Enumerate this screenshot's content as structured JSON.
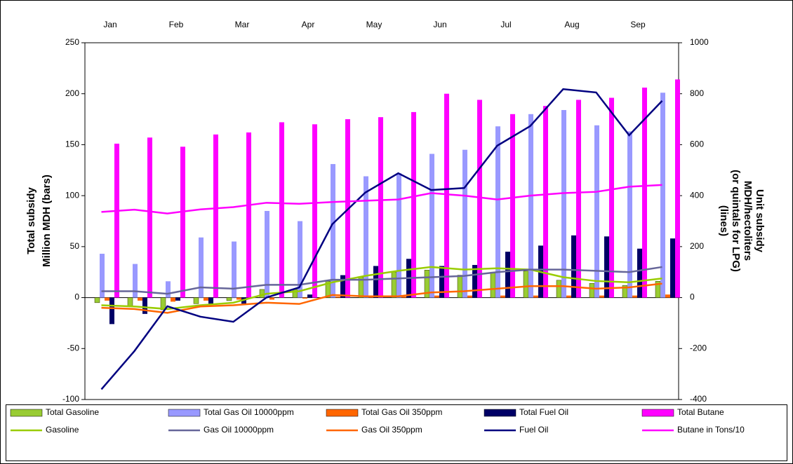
{
  "chart_data": {
    "type": "bar",
    "categories": [
      "Jan",
      null,
      "Feb",
      null,
      "Mar",
      null,
      "Apr",
      null,
      "May",
      null,
      "Jun",
      null,
      "Jul",
      null,
      "Aug",
      null,
      "Sep",
      null
    ],
    "y_label": [
      "Total subsidy",
      "Million MDH (bars)"
    ],
    "y2_label": [
      "Unit subsidy",
      "MDH/hectoliters",
      "(or quintals for LPG)",
      "(lines)"
    ],
    "ylim": [
      -100,
      250
    ],
    "yticks": [
      -100,
      -50,
      0,
      50,
      100,
      150,
      200,
      250
    ],
    "y2lim": [
      -400,
      1000
    ],
    "y2ticks": [
      -400,
      -200,
      0,
      200,
      400,
      600,
      800,
      1000
    ],
    "series": [
      {
        "name": "Total Gasoline",
        "type": "bar",
        "color": "#99cc33",
        "values": [
          -5,
          -8,
          -12,
          -6,
          -3,
          8,
          8,
          16,
          20,
          25,
          27,
          22,
          25,
          26,
          17,
          14,
          12,
          16
        ]
      },
      {
        "name": "Total Gas Oil 10000ppm",
        "type": "bar",
        "color": "#9999ff",
        "values": [
          43,
          33,
          16,
          59,
          55,
          85,
          75,
          131,
          119,
          122,
          141,
          145,
          168,
          180,
          184,
          169,
          163,
          201
        ]
      },
      {
        "name": "Total Gas Oil 350ppm",
        "type": "bar",
        "color": "#ff6600",
        "values": [
          -3,
          -3,
          -4,
          -3,
          -2,
          -2,
          -1,
          1,
          1,
          1,
          2,
          2,
          2,
          2,
          2,
          2,
          2,
          3
        ]
      },
      {
        "name": "Total Fuel Oil",
        "type": "bar",
        "color": "#000066",
        "values": [
          -26,
          -16,
          -3,
          -6,
          -6,
          0,
          3,
          22,
          31,
          38,
          31,
          32,
          45,
          51,
          61,
          60,
          48,
          58
        ]
      },
      {
        "name": "Total Butane",
        "type": "bar",
        "color": "#ff00ff",
        "values": [
          151,
          157,
          148,
          160,
          162,
          172,
          170,
          175,
          177,
          182,
          200,
          194,
          180,
          188,
          194,
          196,
          206,
          214
        ]
      },
      {
        "name": "Gasoline",
        "type": "line",
        "axis": "y2",
        "color": "#99cc00",
        "values": [
          -30,
          -35,
          -45,
          -30,
          -20,
          15,
          25,
          60,
          85,
          105,
          120,
          110,
          115,
          110,
          80,
          65,
          60,
          75
        ]
      },
      {
        "name": "Gas Oil 10000ppm",
        "type": "line",
        "axis": "y2",
        "color": "#666699",
        "values": [
          25,
          25,
          15,
          40,
          35,
          50,
          50,
          70,
          70,
          75,
          80,
          85,
          100,
          110,
          110,
          105,
          100,
          120
        ]
      },
      {
        "name": "Gas Oil 350ppm",
        "type": "line",
        "axis": "y2",
        "color": "#ff6600",
        "values": [
          -40,
          -45,
          -60,
          -35,
          -30,
          -20,
          -25,
          10,
          5,
          5,
          20,
          25,
          35,
          45,
          45,
          35,
          40,
          55
        ]
      },
      {
        "name": "Fuel Oil",
        "type": "line",
        "axis": "y2",
        "color": "#000080",
        "values": [
          -360,
          -210,
          -34,
          -75,
          -95,
          0,
          40,
          288,
          412,
          488,
          422,
          430,
          596,
          673,
          818,
          805,
          637,
          772
        ]
      },
      {
        "name": "Butane in Tons/10",
        "type": "line",
        "axis": "y2",
        "color": "#ff00ff",
        "values": [
          336,
          345,
          330,
          346,
          355,
          372,
          368,
          375,
          380,
          385,
          410,
          400,
          385,
          400,
          410,
          415,
          435,
          442
        ]
      }
    ]
  }
}
